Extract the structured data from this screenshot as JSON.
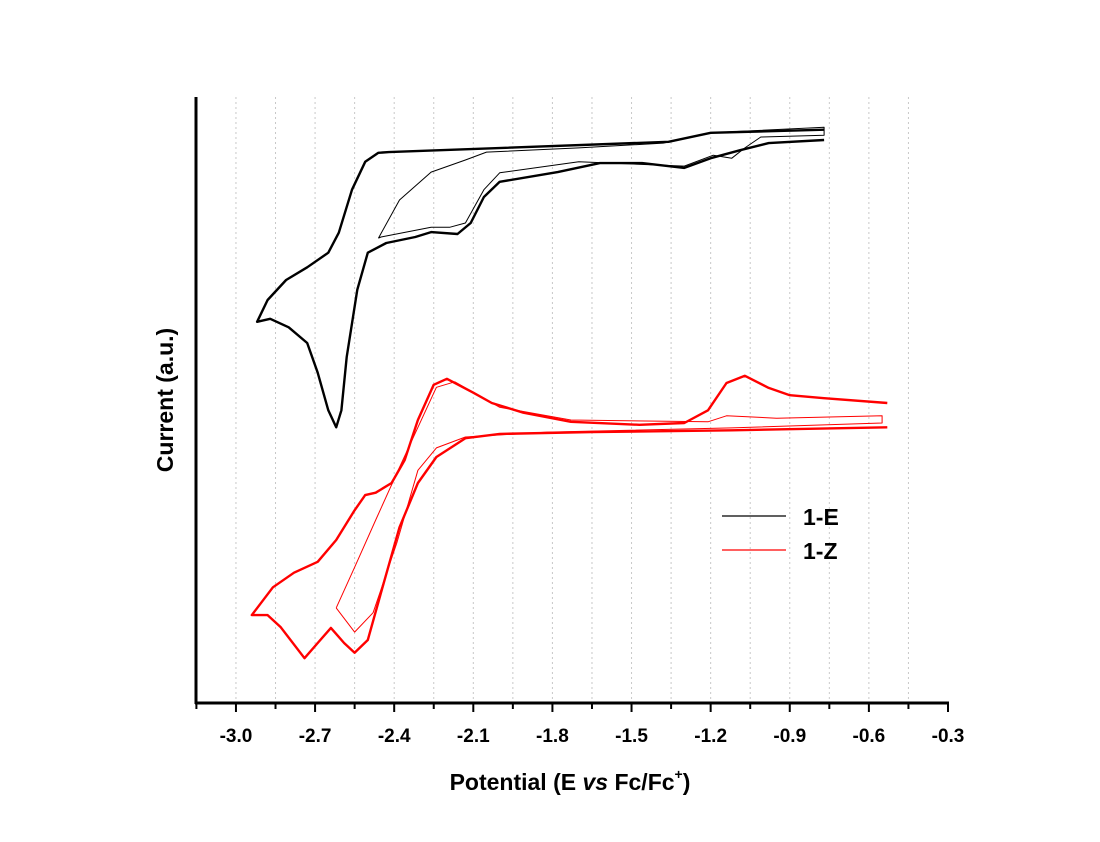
{
  "chart_data": {
    "type": "line",
    "title": "",
    "xlabel": {
      "prefix": "Potential (E ",
      "italic": "vs",
      "suffix": " Fc/Fc",
      "superscript": "+",
      "close": ")"
    },
    "ylabel": "Current (a.u.)",
    "xlim": [
      -3.15,
      -0.3
    ],
    "ylim": [
      0,
      100
    ],
    "x_ticks": [
      -3.0,
      -2.7,
      -2.4,
      -2.1,
      -1.8,
      -1.5,
      -1.2,
      -0.9,
      -0.6,
      -0.3
    ],
    "x_tick_labels": [
      "-3.0",
      "-2.7",
      "-2.4",
      "-2.1",
      "-1.8",
      "-1.5",
      "-1.2",
      "-0.9",
      "-0.6",
      "-0.3"
    ],
    "x_minor_step": 0.15,
    "y_ticks_shown": false,
    "grid": {
      "vertical": true,
      "style": "dotted",
      "step": 0.15
    },
    "legend": {
      "placement": "right-center",
      "entries": [
        "1-E",
        "1-Z"
      ]
    },
    "series": [
      {
        "name": "1-E",
        "color": "#000000",
        "traces": [
          {
            "weight": "thick",
            "x": [
              -0.77,
              -1.2,
              -1.36,
              -2.42,
              -2.46,
              -2.51,
              -2.56,
              -2.61,
              -2.65,
              -2.73,
              -2.81,
              -2.88,
              -2.92,
              -2.87,
              -2.8,
              -2.73,
              -2.69,
              -2.65,
              -2.62,
              -2.6,
              -2.58,
              -2.54,
              -2.5,
              -2.43,
              -2.32,
              -2.26,
              -2.16,
              -2.11,
              -2.06,
              -2.0,
              -1.78,
              -1.62,
              -1.46,
              -1.3,
              -1.2,
              -1.09,
              -0.98,
              -0.77
            ],
            "y": [
              94.6,
              94.1,
              92.6,
              90.9,
              90.8,
              89.3,
              84.7,
              77.6,
              74.3,
              71.9,
              69.8,
              66.5,
              62.9,
              63.4,
              62.0,
              59.4,
              54.5,
              48.3,
              45.5,
              48.3,
              57.1,
              68.2,
              74.3,
              75.9,
              76.9,
              77.7,
              77.4,
              79.2,
              83.5,
              86.0,
              87.6,
              89.1,
              89.1,
              88.3,
              89.9,
              91.2,
              92.4,
              92.9
            ]
          },
          {
            "weight": "thin",
            "x": [
              -2.46,
              -2.38,
              -2.26,
              -2.13,
              -2.05,
              -1.7,
              -1.38,
              -1.2,
              -0.77,
              -0.77,
              -1.01,
              -1.07,
              -1.12,
              -1.19,
              -1.3,
              -1.7,
              -2.0,
              -2.06,
              -2.13,
              -2.19,
              -2.26,
              -2.45,
              -2.46
            ],
            "y": [
              76.7,
              83.0,
              87.6,
              89.6,
              90.9,
              91.6,
              92.4,
              94.1,
              95.0,
              93.7,
              93.4,
              91.6,
              89.9,
              90.4,
              88.6,
              89.3,
              87.5,
              84.7,
              79.2,
              78.5,
              78.5,
              76.9,
              76.7
            ]
          }
        ]
      },
      {
        "name": "1-Z",
        "color": "#ff0000",
        "traces": [
          {
            "weight": "thick",
            "x": [
              -0.53,
              -0.77,
              -0.9,
              -0.98,
              -1.07,
              -1.14,
              -1.21,
              -1.3,
              -1.47,
              -1.73,
              -1.91,
              -2.03,
              -2.1,
              -2.2,
              -2.25,
              -2.31,
              -2.36,
              -2.41,
              -2.47,
              -2.51,
              -2.55,
              -2.62,
              -2.69,
              -2.78,
              -2.86,
              -2.94,
              -2.88,
              -2.83,
              -2.74,
              -2.69,
              -2.64,
              -2.59,
              -2.55,
              -2.5,
              -2.45,
              -2.38,
              -2.31,
              -2.24,
              -2.13,
              -2.0,
              -1.65,
              -1.12,
              -0.53
            ],
            "y": [
              49.5,
              50.3,
              50.8,
              52.0,
              54.0,
              52.8,
              48.3,
              46.2,
              45.9,
              46.4,
              47.9,
              49.5,
              51.2,
              53.5,
              52.5,
              46.7,
              40.1,
              36.3,
              34.7,
              34.3,
              31.8,
              26.9,
              23.3,
              21.5,
              19.1,
              14.5,
              14.5,
              12.5,
              7.4,
              9.9,
              12.4,
              9.9,
              8.3,
              10.4,
              18.2,
              29.0,
              36.3,
              40.6,
              43.7,
              44.4,
              44.7,
              45.0,
              45.5
            ]
          },
          {
            "weight": "thin",
            "x": [
              -2.62,
              -2.55,
              -2.48,
              -2.39,
              -2.31,
              -2.24,
              -2.13,
              -1.82,
              -1.12,
              -0.55,
              -0.55,
              -0.95,
              -1.14,
              -1.21,
              -1.73,
              -2.0,
              -2.17,
              -2.24,
              -2.38,
              -2.47,
              -2.55,
              -2.62
            ],
            "y": [
              15.7,
              11.7,
              14.9,
              26.4,
              38.4,
              42.1,
              43.9,
              44.7,
              45.4,
              46.2,
              47.4,
              47.0,
              47.4,
              46.4,
              46.7,
              48.8,
              53.0,
              52.1,
              38.9,
              30.2,
              22.4,
              15.7
            ]
          }
        ]
      }
    ]
  }
}
